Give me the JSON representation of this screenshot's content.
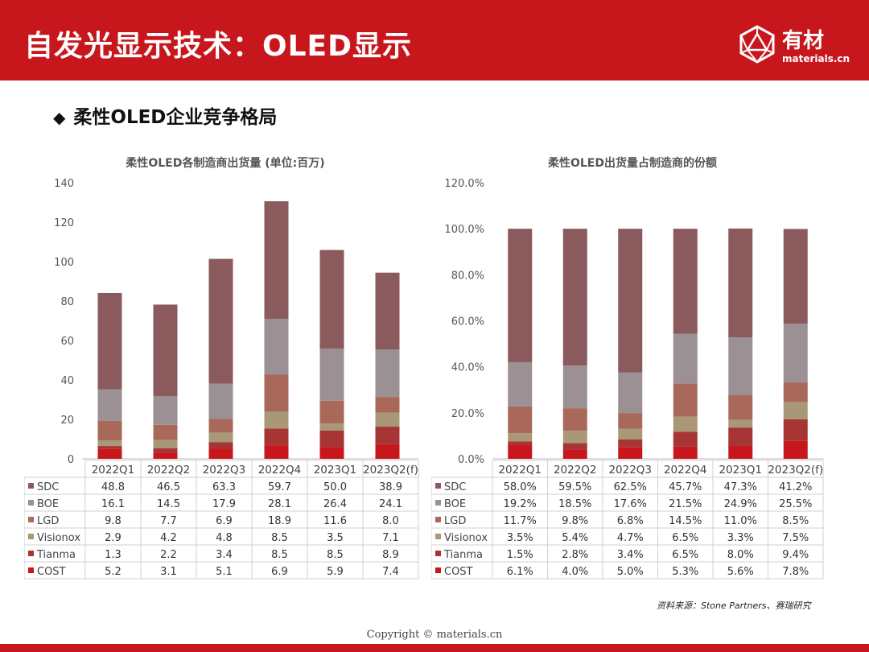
{
  "header": {
    "title": "自发光显示技术：OLED显示",
    "logo_text": "有材",
    "logo_sub": "materials.cn"
  },
  "section_title": "柔性OLED企业竞争格局",
  "colors": {
    "brand": "#c8161d",
    "SDC": "#8b5a5d",
    "BOE": "#9b9093",
    "LGD": "#a8695b",
    "Visionox": "#a89878",
    "Tianma": "#a63534",
    "COST": "#c8161d"
  },
  "chart_data": [
    {
      "type": "bar",
      "stacked": true,
      "title": "柔性OLED各制造商出货量 (单位:百万)",
      "categories": [
        "2022Q1",
        "2022Q2",
        "2022Q3",
        "2022Q4",
        "2023Q1",
        "2023Q2(f)"
      ],
      "ylim": [
        0,
        140
      ],
      "yticks": [
        0,
        20,
        40,
        60,
        80,
        100,
        120,
        140
      ],
      "ytick_labels": [
        "0",
        "20",
        "40",
        "60",
        "80",
        "100",
        "120",
        "140"
      ],
      "series": [
        {
          "name": "COST",
          "values": [
            5.2,
            3.1,
            5.1,
            6.9,
            5.9,
            7.4
          ],
          "labels": [
            "5.2",
            "3.1",
            "5.1",
            "6.9",
            "5.9",
            "7.4"
          ]
        },
        {
          "name": "Tianma",
          "values": [
            1.3,
            2.2,
            3.4,
            8.5,
            8.5,
            8.9
          ],
          "labels": [
            "1.3",
            "2.2",
            "3.4",
            "8.5",
            "8.5",
            "8.9"
          ]
        },
        {
          "name": "Visionox",
          "values": [
            2.9,
            4.2,
            4.8,
            8.5,
            3.5,
            7.1
          ],
          "labels": [
            "2.9",
            "4.2",
            "4.8",
            "8.5",
            "3.5",
            "7.1"
          ]
        },
        {
          "name": "LGD",
          "values": [
            9.8,
            7.7,
            6.9,
            18.9,
            11.6,
            8.0
          ],
          "labels": [
            "9.8",
            "7.7",
            "6.9",
            "18.9",
            "11.6",
            "8.0"
          ]
        },
        {
          "name": "BOE",
          "values": [
            16.1,
            14.5,
            17.9,
            28.1,
            26.4,
            24.1
          ],
          "labels": [
            "16.1",
            "14.5",
            "17.9",
            "28.1",
            "26.4",
            "24.1"
          ]
        },
        {
          "name": "SDC",
          "values": [
            48.8,
            46.5,
            63.3,
            59.7,
            50.0,
            38.9
          ],
          "labels": [
            "48.8",
            "46.5",
            "63.3",
            "59.7",
            "50.0",
            "38.9"
          ]
        }
      ]
    },
    {
      "type": "bar",
      "stacked": true,
      "title": "柔性OLED出货量占制造商的份额",
      "categories": [
        "2022Q1",
        "2022Q2",
        "2022Q3",
        "2022Q4",
        "2023Q1",
        "2023Q2(f)"
      ],
      "ylim": [
        0,
        120
      ],
      "yticks": [
        0,
        20,
        40,
        60,
        80,
        100,
        120
      ],
      "ytick_labels": [
        "0.0%",
        "20.0%",
        "40.0%",
        "60.0%",
        "80.0%",
        "100.0%",
        "120.0%"
      ],
      "series": [
        {
          "name": "COST",
          "values": [
            6.1,
            4.0,
            5.0,
            5.3,
            5.6,
            7.8
          ],
          "labels": [
            "6.1%",
            "4.0%",
            "5.0%",
            "5.3%",
            "5.6%",
            "7.8%"
          ]
        },
        {
          "name": "Tianma",
          "values": [
            1.5,
            2.8,
            3.4,
            6.5,
            8.0,
            9.4
          ],
          "labels": [
            "1.5%",
            "2.8%",
            "3.4%",
            "6.5%",
            "8.0%",
            "9.4%"
          ]
        },
        {
          "name": "Visionox",
          "values": [
            3.5,
            5.4,
            4.7,
            6.5,
            3.3,
            7.5
          ],
          "labels": [
            "3.5%",
            "5.4%",
            "4.7%",
            "6.5%",
            "3.3%",
            "7.5%"
          ]
        },
        {
          "name": "LGD",
          "values": [
            11.7,
            9.8,
            6.8,
            14.5,
            11.0,
            8.5
          ],
          "labels": [
            "11.7%",
            "9.8%",
            "6.8%",
            "14.5%",
            "11.0%",
            "8.5%"
          ]
        },
        {
          "name": "BOE",
          "values": [
            19.2,
            18.5,
            17.6,
            21.5,
            24.9,
            25.5
          ],
          "labels": [
            "19.2%",
            "18.5%",
            "17.6%",
            "21.5%",
            "24.9%",
            "25.5%"
          ]
        },
        {
          "name": "SDC",
          "values": [
            58.0,
            59.5,
            62.5,
            45.7,
            47.3,
            41.2
          ],
          "labels": [
            "58.0%",
            "59.5%",
            "62.5%",
            "45.7%",
            "47.3%",
            "41.2%"
          ]
        }
      ]
    }
  ],
  "table_row_order": [
    "SDC",
    "BOE",
    "LGD",
    "Visionox",
    "Tianma",
    "COST"
  ],
  "source_text": "资料来源：Stone Partners、赛瑞研究",
  "copyright_text": "Copyright © materials.cn"
}
